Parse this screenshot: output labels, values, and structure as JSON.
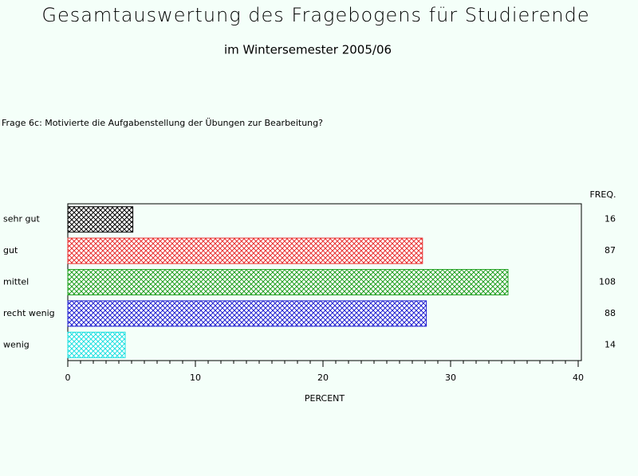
{
  "chart_data": {
    "type": "hbar",
    "title": "Gesamtauswertung des Fragebogens für Studierende",
    "subtitle": "im Wintersemester 2005/06",
    "question": "Frage 6c: Motivierte die Aufgabenstellung der Übungen zur Bearbeitung?",
    "categories": [
      "sehr gut",
      "gut",
      "mittel",
      "recht wenig",
      "wenig"
    ],
    "values": [
      5.1,
      27.8,
      34.5,
      28.1,
      4.5
    ],
    "colors": [
      "#000000",
      "#e83030",
      "#20a020",
      "#2020d0",
      "#20e0e0"
    ],
    "freq_label": "FREQ.",
    "freq": [
      16,
      87,
      108,
      88,
      14
    ],
    "xlabel": "PERCENT",
    "xlim": [
      0,
      40
    ],
    "xticks": [
      0,
      10,
      20,
      30,
      40
    ]
  }
}
